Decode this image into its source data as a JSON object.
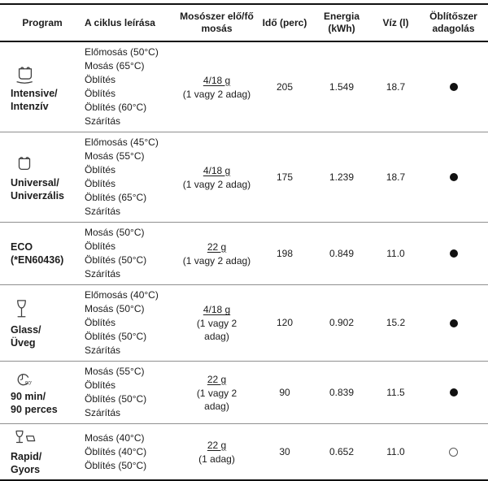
{
  "table": {
    "headers": [
      "Program",
      "A ciklus leírása",
      "Mosószer elő/fő mosás",
      "Idő (perc)",
      "Energia (kWh)",
      "Víz (l)",
      "Öblítőszer adagolás"
    ],
    "rows": [
      {
        "icon": "pot-heat-icon",
        "name_lines": [
          "Intensive/",
          "Intenzív"
        ],
        "cycle": [
          "Előmosás (50°C)",
          "Mosás (65°C)",
          "Öblítés",
          "Öblítés",
          "Öblítés (60°C)",
          "Szárítás"
        ],
        "detergent": {
          "amount": "4/18 g",
          "note_lines": [
            "(1 vagy 2 adag)"
          ]
        },
        "time": "205",
        "energy": "1.549",
        "water": "18.7",
        "rinse_aid": "filled"
      },
      {
        "icon": "pot-icon",
        "name_lines": [
          "Universal/",
          "Univerzális"
        ],
        "cycle": [
          "Előmosás (45°C)",
          "Mosás (55°C)",
          "Öblítés",
          "Öblítés",
          "Öblítés (65°C)",
          "Szárítás"
        ],
        "detergent": {
          "amount": "4/18 g",
          "note_lines": [
            "(1 vagy 2 adag)"
          ]
        },
        "time": "175",
        "energy": "1.239",
        "water": "18.7",
        "rinse_aid": "filled"
      },
      {
        "icon": null,
        "name_lines": [
          "ECO",
          "(*EN60436)"
        ],
        "cycle": [
          "Mosás (50°C)",
          "Öblítés",
          "Öblítés (50°C)",
          "Szárítás"
        ],
        "detergent": {
          "amount": "22 g",
          "note_lines": [
            "(1 vagy 2 adag)"
          ]
        },
        "time": "198",
        "energy": "0.849",
        "water": "11.0",
        "rinse_aid": "filled"
      },
      {
        "icon": "wine-glass-icon",
        "name_lines": [
          "Glass/",
          "Üveg"
        ],
        "cycle": [
          "Előmosás (40°C)",
          "Mosás (50°C)",
          "Öblítés",
          "Öblítés (50°C)",
          "Szárítás"
        ],
        "detergent": {
          "amount": "4/18 g",
          "note_lines": [
            "(1 vagy 2",
            "adag)"
          ]
        },
        "time": "120",
        "energy": "0.902",
        "water": "15.2",
        "rinse_aid": "filled"
      },
      {
        "icon": "clock-90-icon",
        "name_lines": [
          "90 min/",
          "90 perces"
        ],
        "cycle": [
          "Mosás (55°C)",
          "Öblítés",
          "Öblítés (50°C)",
          "Szárítás"
        ],
        "detergent": {
          "amount": "22 g",
          "note_lines": [
            "(1 vagy 2",
            "adag)"
          ]
        },
        "time": "90",
        "energy": "0.839",
        "water": "11.5",
        "rinse_aid": "filled"
      },
      {
        "icon": "glass-dish-icon",
        "name_lines": [
          "Rapid/",
          "Gyors"
        ],
        "cycle": [
          "Mosás (40°C)",
          "Öblítés (40°C)",
          "Öblítés (50°C)"
        ],
        "detergent": {
          "amount": "22 g",
          "note_lines": [
            "(1 adag)"
          ]
        },
        "time": "30",
        "energy": "0.652",
        "water": "11.0",
        "rinse_aid": "empty"
      }
    ]
  }
}
